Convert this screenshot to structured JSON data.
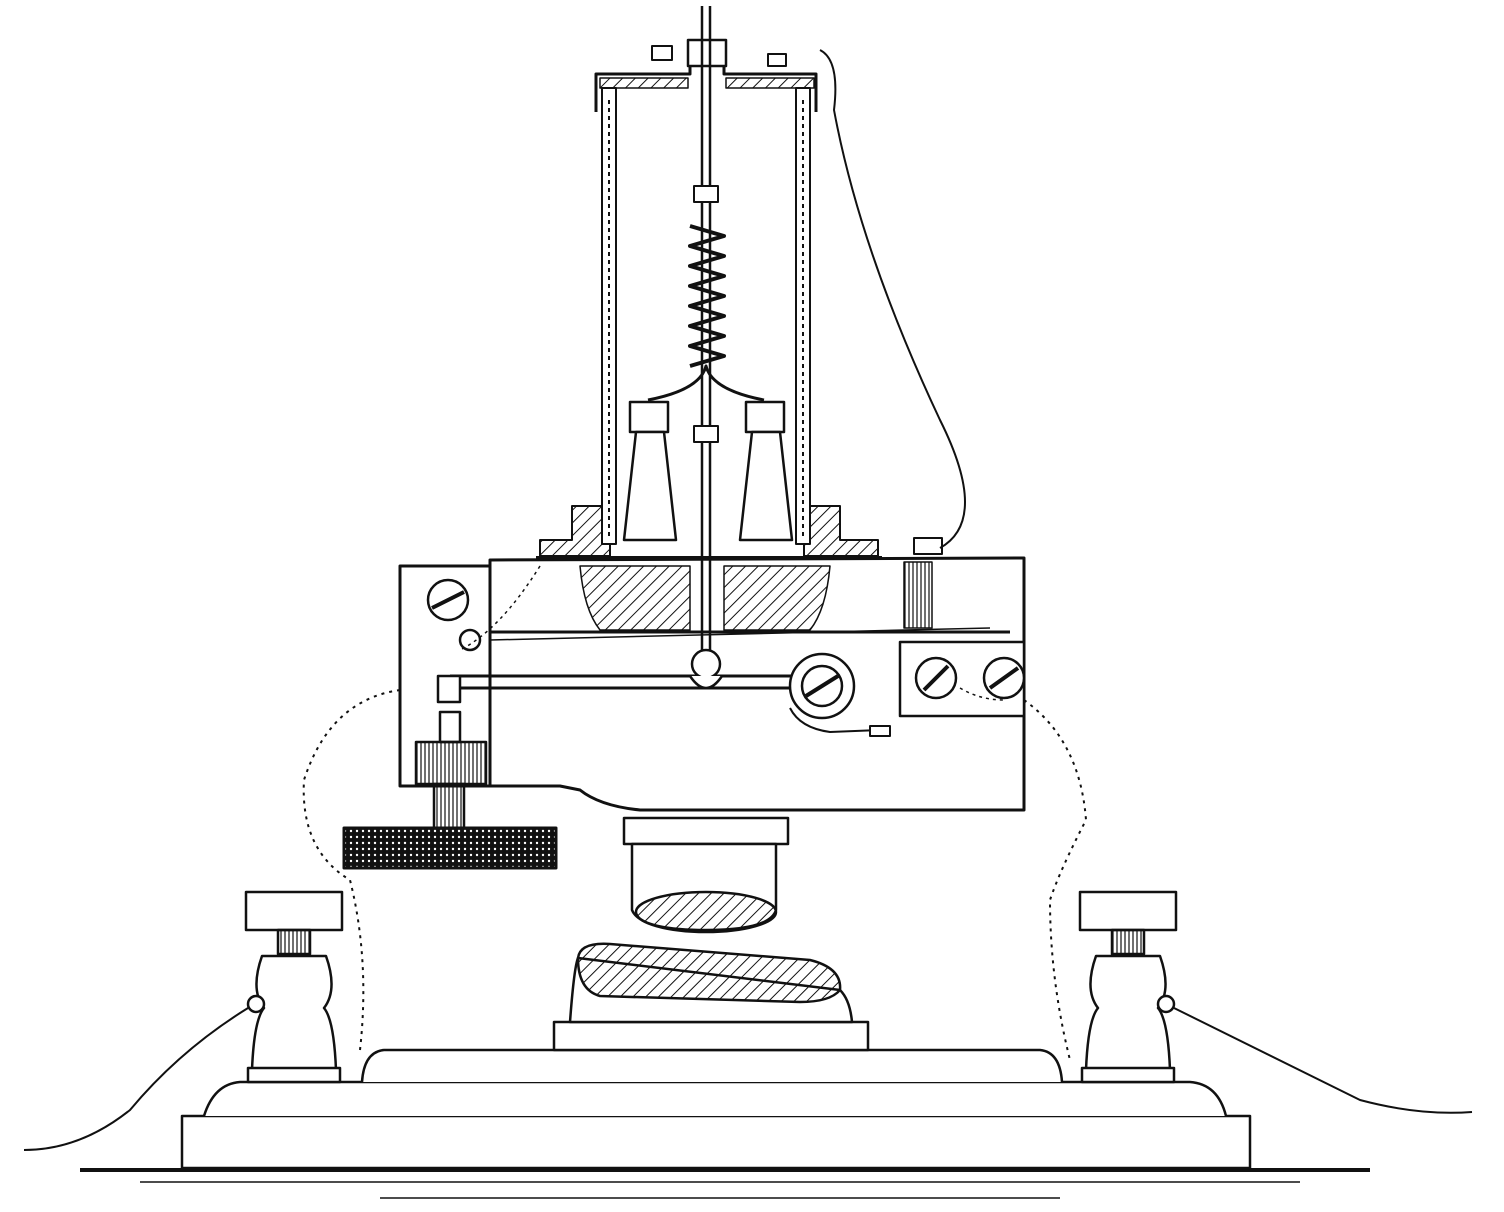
{
  "figure": {
    "colors": {
      "ink": "#111111",
      "paper": "#ffffff"
    },
    "parts": [
      "protective-cylinder-cover",
      "suspension-rod",
      "coiled-spring",
      "terminal-posts",
      "bracket-frame",
      "contact-lever",
      "adjusting-screw",
      "milled-head-wheel",
      "lower-electrode",
      "upper-electrode",
      "binding-posts",
      "base-plate",
      "coiled-lead-wires"
    ]
  }
}
